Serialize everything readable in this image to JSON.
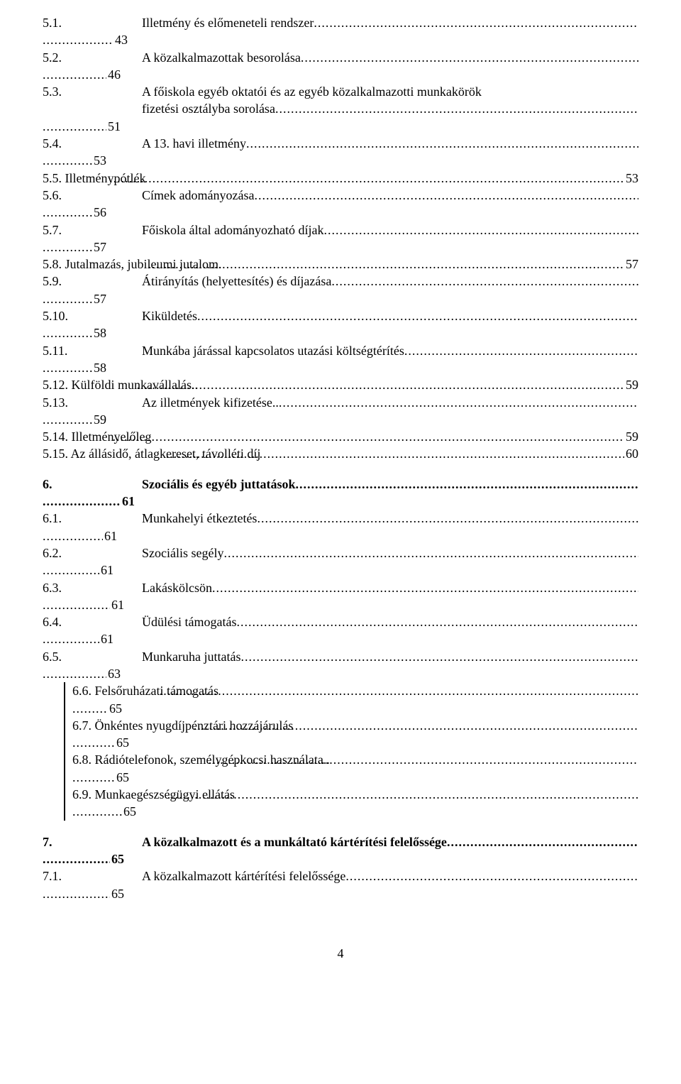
{
  "entries": [
    {
      "num": "5.1.",
      "title": "Illetmény és előmeneteli rendszer",
      "page": "43",
      "leadDotsW": 100,
      "indentCol": true
    },
    {
      "num": "5.2.",
      "title": "A közalkalmazottak besorolása",
      "page": "46",
      "leadDotsW": 90,
      "indentCol": true,
      "flat": true
    },
    {
      "num": "5.3.",
      "title": "A főiskola egyéb oktatói és az egyéb közalkalmazotti munkakörök",
      "title2": "fizetési osztályba sorolása",
      "page": "51",
      "leadDotsW": 90,
      "indentCol": true,
      "twoLineTitle": true
    },
    {
      "num": "5.4.",
      "title": "A 13. havi illetmény",
      "page": "53",
      "leadDotsW": 70,
      "indentCol": true
    },
    {
      "num": "5.5. Illetménypótlék",
      "title": "",
      "page": "53",
      "leadDotsW": 0,
      "flat": true,
      "shortNum": true
    },
    {
      "num": "5.6.",
      "title": "Címek adományozása",
      "page": "56",
      "leadDotsW": 70,
      "indentCol": true
    },
    {
      "num": "5.7.",
      "title": "Főiskola által adományozható díjak",
      "page": "57",
      "leadDotsW": 70,
      "indentCol": true
    },
    {
      "num": "5.8.",
      "title": "Jutalmazás, jubileumi jutalom.",
      "page": "57",
      "leadDotsW": 0,
      "flat": true,
      "shortNum": true
    },
    {
      "num": "5.9.",
      "title": "Átirányítás (helyettesítés) és díjazása",
      "page": "57",
      "leadDotsW": 70,
      "indentCol": true
    },
    {
      "num": "5.10.",
      "title": "Kiküldetés",
      "page": "58",
      "leadDotsW": 70,
      "indentCol": true
    },
    {
      "num": "5.11.",
      "title": "Munkába járással kapcsolatos utazási költségtérítés",
      "page": "58",
      "leadDotsW": 70,
      "indentCol": true
    },
    {
      "num": "5.12. Külföldi munkavállalás..",
      "title": "",
      "page": "59",
      "leadDotsW": 0,
      "flat": true,
      "shortNum": true
    },
    {
      "num": "5.13.",
      "title": "Az illetmények kifizetése..",
      "page": "59",
      "leadDotsW": 70,
      "indentCol": true
    },
    {
      "num": "5.14. Illetményelőleg",
      "title": "",
      "page": "59",
      "leadDotsW": 0,
      "flat": true,
      "shortNum": true
    },
    {
      "num": "5.15. Az állásidő, átlagkereset, távolléti díj",
      "title": "",
      "page": "60",
      "leadDotsW": 0,
      "flat": true,
      "shortNum": true
    }
  ],
  "section6": {
    "head": {
      "num": "6.",
      "title": "Szociális és egyéb juttatások",
      "page": "61",
      "leadDotsW": 110,
      "indentCol": true
    },
    "items": [
      {
        "num": "6.1.",
        "title": "Munkahelyi étkeztetés",
        "page": "61",
        "leadDotsW": 85,
        "indentCol": true
      },
      {
        "num": "6.2.",
        "title": "Szociális segély",
        "page": "61",
        "leadDotsW": 80,
        "indentCol": true
      },
      {
        "num": "6.3.",
        "title": "Lakáskölcsön",
        "page": "61",
        "leadDotsW": 95,
        "indentCol": true
      },
      {
        "num": "6.4.",
        "title": "Üdülési támogatás",
        "page": "61",
        "leadDotsW": 80,
        "indentCol": true
      },
      {
        "num": "6.5.",
        "title": "Munkaruha juttatás",
        "page": "63",
        "leadDotsW": 90,
        "indentCol": true
      }
    ],
    "boxed": [
      {
        "text": "6.6. Felsőruházati támogatás",
        "page": "65",
        "leadDotsW": 50
      },
      {
        "text": "6.7. Önkéntes nyugdíjpénztári hozzájárulás",
        "page": "65",
        "leadDotsW": 60
      },
      {
        "text": "6.8. Rádiótelefonok, személygépkocsi használata..",
        "page": "65",
        "leadDotsW": 60
      },
      {
        "text": "6.9. Munkaegészségügyi ellátás",
        "page": "65",
        "leadDotsW": 70
      }
    ]
  },
  "section7": {
    "head": {
      "num": "7.",
      "title": "A közalkalmazott és a munkáltató kártérítési felelőssége",
      "page": "65",
      "leadDotsW": 95,
      "indentCol": true
    },
    "items": [
      {
        "num": "7.1.",
        "title": "A közalkalmazott kártérítési felelőssége",
        "page": "65",
        "leadDotsW": 95,
        "indentCol": true
      }
    ]
  },
  "pageNumber": "4"
}
